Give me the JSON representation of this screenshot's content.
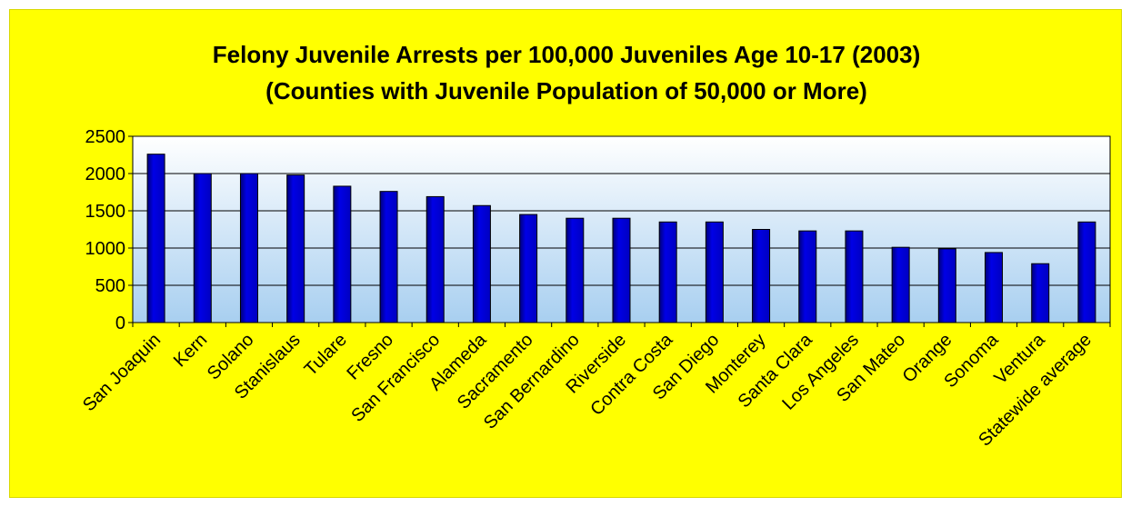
{
  "chart_data": {
    "type": "bar",
    "title": "Felony Juvenile Arrests per 100,000 Juveniles Age 10-17 (2003)",
    "subtitle": "(Counties with Juvenile Population of 50,000 or More)",
    "xlabel": "",
    "ylabel": "",
    "ylim": [
      0,
      2500
    ],
    "yticks": [
      0,
      500,
      1000,
      1500,
      2000,
      2500
    ],
    "grid": true,
    "legend": "none",
    "categories": [
      "San Joaquin",
      "Kern",
      "Solano",
      "Stanislaus",
      "Tulare",
      "Fresno",
      "San Francisco",
      "Alameda",
      "Sacramento",
      "San Bernardino",
      "Riverside",
      "Contra Costa",
      "San Diego",
      "Monterey",
      "Santa Clara",
      "Los Angeles",
      "San Mateo",
      "Orange",
      "Sonoma",
      "Ventura",
      "Statewide average"
    ],
    "values": [
      2260,
      2000,
      2000,
      1980,
      1830,
      1760,
      1690,
      1570,
      1450,
      1400,
      1400,
      1350,
      1350,
      1250,
      1230,
      1230,
      1010,
      990,
      940,
      790,
      1350
    ],
    "colors": {
      "background": "#ffff00",
      "bar_fill": "#0000e6",
      "bar_dark": "#00007a",
      "plot_top": "#ffffff",
      "plot_bottom": "#a8cff0",
      "gridline": "#000000"
    }
  }
}
